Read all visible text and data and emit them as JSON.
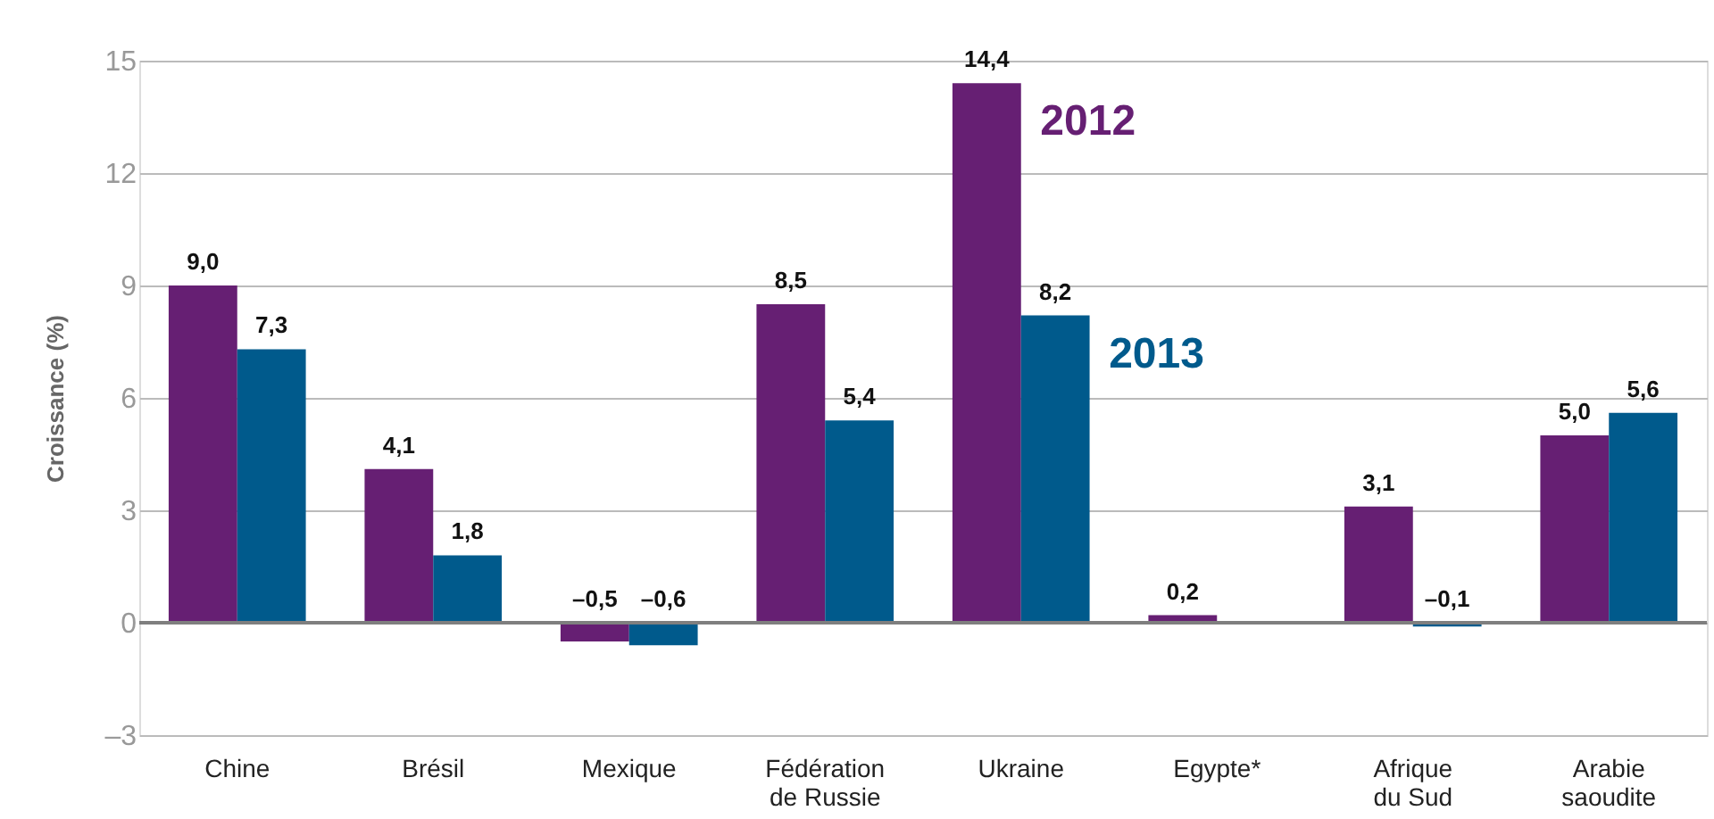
{
  "chart_data": {
    "type": "bar",
    "ylabel": "Croissance (%)",
    "categories": [
      "Chine",
      "Brésil",
      "Mexique",
      "Fédération de Russie",
      "Ukraine",
      "Egypte*",
      "Afrique du Sud",
      "Arabie saoudite"
    ],
    "series": [
      {
        "name": "2012",
        "color": "#661f73",
        "values": [
          9.0,
          4.1,
          -0.5,
          8.5,
          14.4,
          0.2,
          3.1,
          5.0
        ],
        "value_labels": [
          "9,0",
          "4,1",
          "–0,5",
          "8,5",
          "14,4",
          "0,2",
          "3,1",
          "5,0"
        ]
      },
      {
        "name": "2013",
        "color": "#005a8c",
        "values": [
          7.3,
          1.8,
          -0.6,
          5.4,
          8.2,
          null,
          -0.1,
          5.6
        ],
        "value_labels": [
          "7,3",
          "1,8",
          "–0,6",
          "5,4",
          "8,2",
          null,
          "–0,1",
          "5,6"
        ]
      }
    ],
    "ylim": [
      -3,
      15
    ],
    "yticks": [
      {
        "value": -3,
        "label": "–3"
      },
      0,
      3,
      6,
      9,
      12,
      15
    ],
    "ref_lines": [
      {
        "axis": "y",
        "value": 0,
        "color": "#7f7f7f"
      }
    ],
    "grid": "y"
  }
}
